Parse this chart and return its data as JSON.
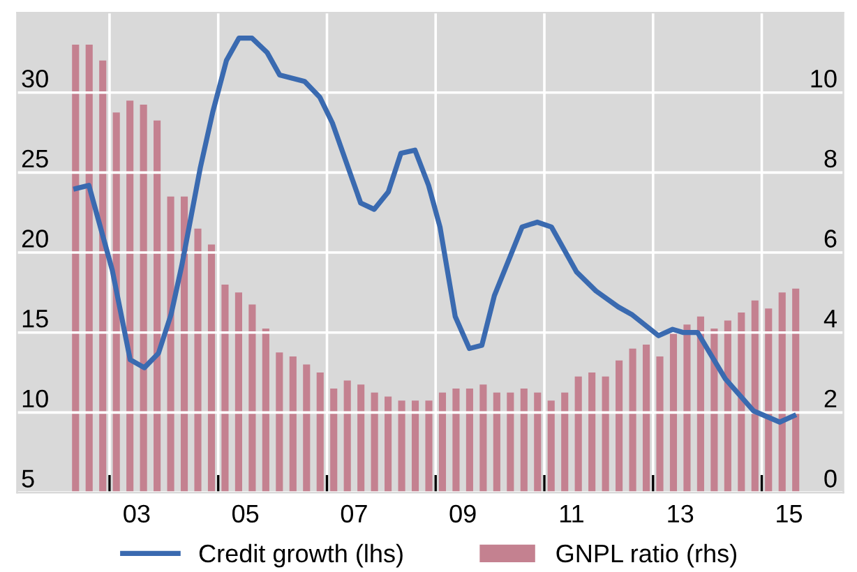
{
  "chart_data": {
    "type": "line",
    "xlim": [
      0.8,
      16.0
    ],
    "xticks": [
      {
        "value": 2.5,
        "label": null
      },
      {
        "value": 3,
        "label": "03"
      },
      {
        "value": 4.5,
        "label": null
      },
      {
        "value": 5,
        "label": "05"
      },
      {
        "value": 6.5,
        "label": null
      },
      {
        "value": 7,
        "label": "07"
      },
      {
        "value": 8.5,
        "label": null
      },
      {
        "value": 9,
        "label": "09"
      },
      {
        "value": 10.5,
        "label": null
      },
      {
        "value": 11,
        "label": "11"
      },
      {
        "value": 12.5,
        "label": null
      },
      {
        "value": 13,
        "label": "13"
      },
      {
        "value": 14.5,
        "label": null
      },
      {
        "value": 15,
        "label": "15"
      }
    ],
    "ylim": [
      5,
      35
    ],
    "yticks": [
      5,
      10,
      15,
      20,
      25,
      30
    ],
    "y2lim": [
      0,
      12
    ],
    "y2ticks": [
      0,
      2,
      4,
      6,
      8,
      10
    ],
    "grid": true,
    "legend": "bottom",
    "series": [
      {
        "name": "Credit growth (lhs)",
        "color": "#3a6ab0",
        "x": [
          1.88,
          2.12,
          2.55,
          2.88,
          3.14,
          3.4,
          3.63,
          3.83,
          4.17,
          4.4,
          4.65,
          4.88,
          5.12,
          5.4,
          5.63,
          6.09,
          6.37,
          6.6,
          7.12,
          7.37,
          7.63,
          7.86,
          8.12,
          8.37,
          8.58,
          8.86,
          9.12,
          9.35,
          9.58,
          10.09,
          10.37,
          10.63,
          11.09,
          11.45,
          11.86,
          12.12,
          12.6,
          12.86,
          13.06,
          13.32,
          13.83,
          14.35,
          14.83,
          15.09
        ],
        "values": [
          24.0,
          24.2,
          18.9,
          13.3,
          12.8,
          13.7,
          16.1,
          19.2,
          25.3,
          28.8,
          32.0,
          33.4,
          33.4,
          32.5,
          31.1,
          30.7,
          29.7,
          28.1,
          23.1,
          22.7,
          23.8,
          26.2,
          26.4,
          24.2,
          21.6,
          16.0,
          14.0,
          14.2,
          17.3,
          21.6,
          21.9,
          21.6,
          18.8,
          17.6,
          16.6,
          16.1,
          14.8,
          15.2,
          15.0,
          15.0,
          12.1,
          10.1,
          9.4,
          9.8
        ]
      },
      {
        "name": "GNPL ratio (rhs)",
        "type": "bar",
        "axis": "y2",
        "color": "#c48190",
        "x": [
          1.875,
          2.125,
          2.375,
          2.625,
          2.875,
          3.125,
          3.375,
          3.625,
          3.875,
          4.125,
          4.375,
          4.625,
          4.875,
          5.125,
          5.375,
          5.625,
          5.875,
          6.125,
          6.375,
          6.625,
          6.875,
          7.125,
          7.375,
          7.625,
          7.875,
          8.125,
          8.375,
          8.625,
          8.875,
          9.125,
          9.375,
          9.625,
          9.875,
          10.125,
          10.375,
          10.625,
          10.875,
          11.125,
          11.375,
          11.625,
          11.875,
          12.125,
          12.375,
          12.625,
          12.875,
          13.125,
          13.375,
          13.625,
          13.875,
          14.125,
          14.375,
          14.625,
          14.875,
          15.125
        ],
        "values": [
          11.2,
          11.2,
          10.8,
          9.5,
          9.8,
          9.7,
          9.3,
          7.4,
          7.4,
          6.6,
          6.2,
          5.2,
          5.0,
          4.7,
          4.1,
          3.5,
          3.4,
          3.2,
          3.0,
          2.6,
          2.8,
          2.7,
          2.5,
          2.4,
          2.3,
          2.3,
          2.3,
          2.5,
          2.6,
          2.6,
          2.7,
          2.5,
          2.5,
          2.6,
          2.5,
          2.3,
          2.5,
          2.9,
          3.0,
          2.9,
          3.3,
          3.6,
          3.7,
          3.4,
          4.0,
          4.2,
          4.4,
          4.1,
          4.3,
          4.5,
          4.8,
          4.6,
          5.0,
          5.1
        ]
      }
    ]
  }
}
